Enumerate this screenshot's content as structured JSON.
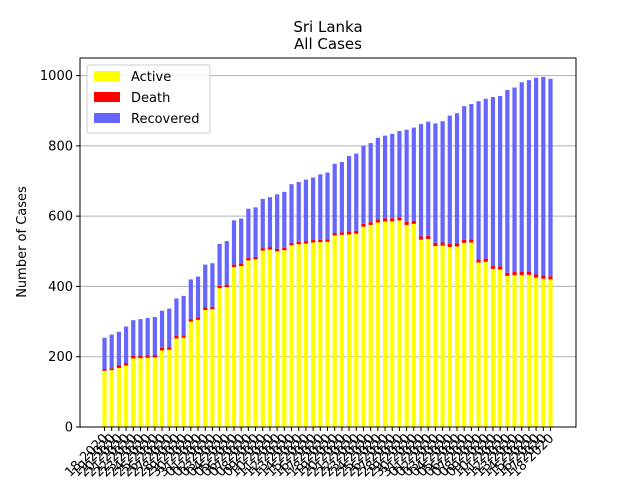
{
  "chart_data": {
    "type": "bar",
    "stacked": true,
    "title": "Sri Lanka",
    "subtitle": "All Cases",
    "xlabel": "",
    "ylabel": "Number of Cases",
    "ylim": [
      0,
      1050
    ],
    "yticks": [
      0,
      200,
      400,
      600,
      800,
      1000
    ],
    "grid": {
      "y": true,
      "x": false
    },
    "legend": {
      "placement": "top-left"
    },
    "categories": [
      "18-2020",
      "19-2020",
      "20-2020",
      "21-2020",
      "22-2020",
      "23-2020",
      "24-2020",
      "25-2020",
      "26-2020",
      "27-2020",
      "28-2020",
      "29-2020",
      "30-2020",
      "31-2020",
      "01-2020",
      "02-2020",
      "03-2020",
      "04-2020",
      "05-2020",
      "06-2020",
      "07-2020",
      "08-2020",
      "09-2020",
      "10-2020",
      "11-2020",
      "12-2020",
      "13-2020",
      "14-2020",
      "15-2020",
      "16-2020",
      "17-2020",
      "18-2020",
      "19-2020",
      "20-2020",
      "21-2020",
      "22-2020",
      "23-2020",
      "24-2020",
      "25-2020",
      "26-2020",
      "27-2020",
      "28-2020",
      "29-2020",
      "30-2020",
      "31-2020",
      "01-2020",
      "02-2020",
      "03-2020",
      "04-2020",
      "05-2020",
      "06-2020",
      "07-2020",
      "08-2020",
      "09-2020",
      "10-2020",
      "11-2020",
      "12-2020",
      "13-2020",
      "14-2020",
      "15-2020",
      "16-2020",
      "17-2020",
      "18-2020"
    ],
    "series": [
      {
        "name": "Active",
        "color": "#ffff00",
        "values": [
          160,
          162,
          168,
          175,
          195,
          196,
          197,
          198,
          218,
          220,
          252,
          254,
          300,
          305,
          333,
          335,
          395,
          398,
          455,
          458,
          474,
          477,
          502,
          505,
          500,
          503,
          517,
          520,
          522,
          525,
          526,
          527,
          545,
          547,
          548,
          550,
          570,
          575,
          582,
          585,
          585,
          588,
          575,
          578,
          533,
          535,
          515,
          516,
          512,
          514,
          524,
          525,
          468,
          470,
          450,
          448,
          430,
          432,
          432,
          433,
          425,
          422,
          420
        ]
      },
      {
        "name": "Death",
        "color": "#ff0000",
        "values": [
          5,
          5,
          7,
          7,
          7,
          7,
          7,
          7,
          7,
          7,
          7,
          7,
          7,
          7,
          7,
          7,
          7,
          7,
          7,
          7,
          7,
          7,
          7,
          7,
          7,
          7,
          7,
          7,
          7,
          7,
          7,
          7,
          7,
          7,
          8,
          8,
          8,
          8,
          9,
          9,
          9,
          9,
          9,
          9,
          9,
          9,
          9,
          9,
          9,
          9,
          9,
          9,
          9,
          9,
          9,
          9,
          9,
          9,
          9,
          9,
          9,
          9,
          9
        ]
      },
      {
        "name": "Recovered",
        "color": "#6666ff",
        "values": [
          89,
          96,
          96,
          104,
          102,
          104,
          106,
          108,
          106,
          110,
          107,
          112,
          113,
          116,
          122,
          124,
          119,
          124,
          126,
          128,
          140,
          141,
          140,
          142,
          155,
          159,
          167,
          170,
          175,
          178,
          186,
          190,
          197,
          200,
          215,
          220,
          222,
          225,
          232,
          235,
          240,
          245,
          262,
          265,
          320,
          325,
          340,
          345,
          365,
          370,
          380,
          385,
          450,
          455,
          480,
          485,
          520,
          525,
          540,
          545,
          560,
          565,
          562
        ]
      }
    ]
  }
}
